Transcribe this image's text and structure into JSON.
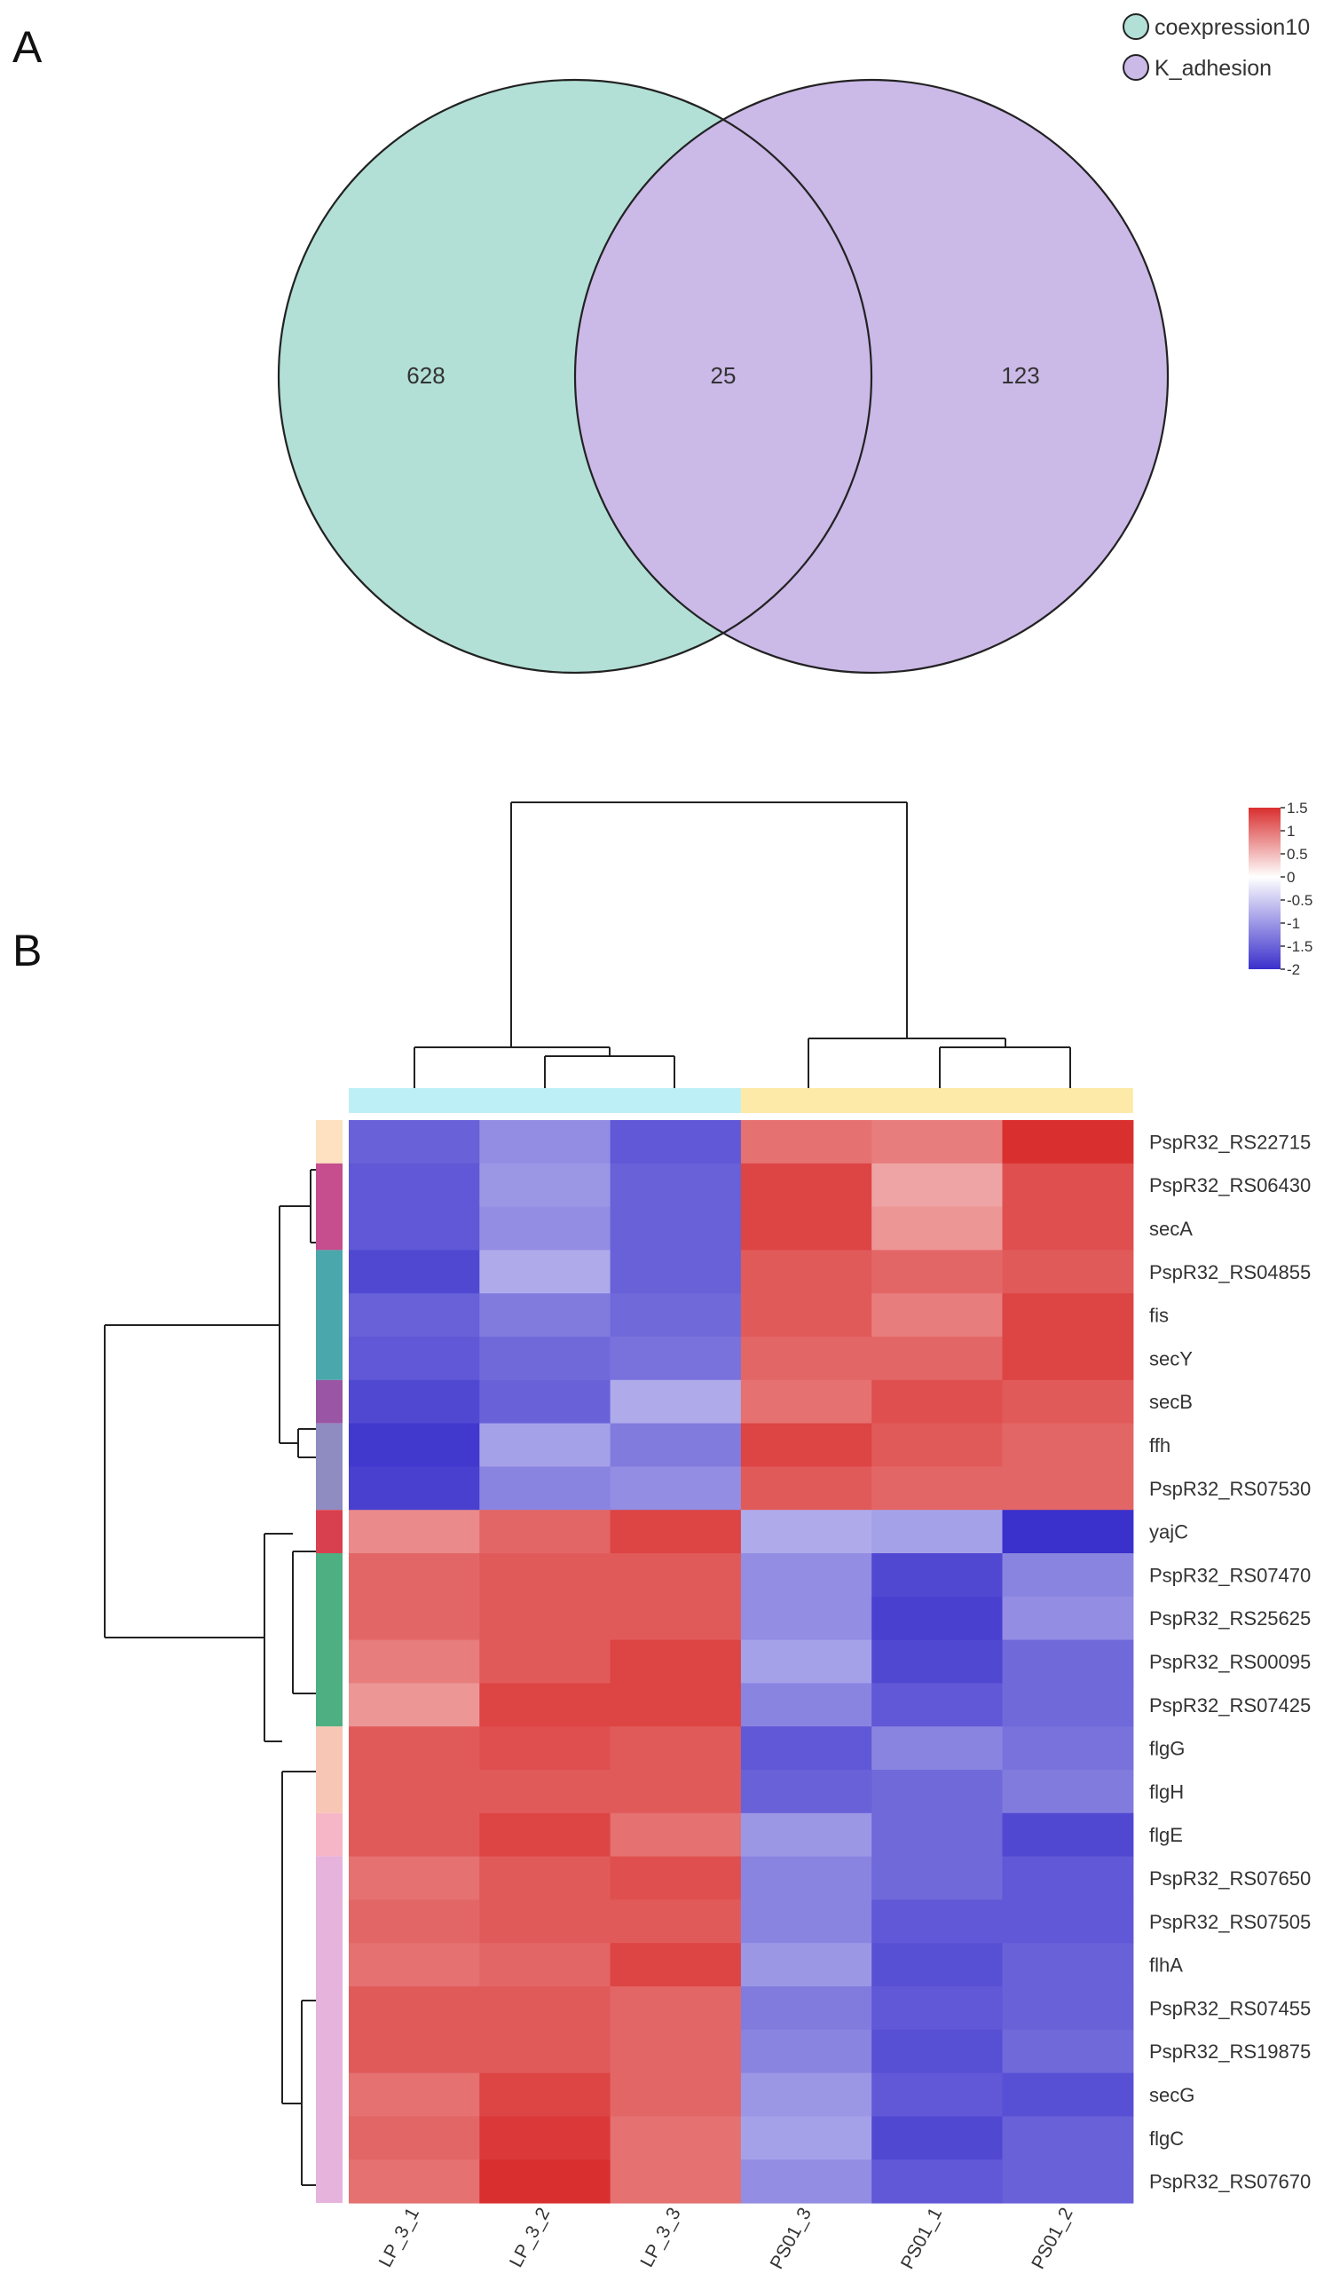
{
  "panel_a": {
    "letter": "A",
    "chart_data": {
      "type": "venn",
      "sets": [
        {
          "name": "coexpression10",
          "color": "#b2e0d6",
          "only": 628
        },
        {
          "name": "K_adhesion",
          "color": "#cbb9e8",
          "only": 123
        }
      ],
      "intersection": 25,
      "labels": [
        "628",
        "25",
        "123"
      ]
    }
  },
  "panel_b": {
    "letter": "B",
    "chart_data": {
      "type": "heatmap",
      "colorbar": {
        "min": -2,
        "max": 1.5,
        "ticks": [
          "1.5",
          "1",
          "0.5",
          "0",
          "-0.5",
          "-1",
          "-1.5",
          "-2"
        ],
        "low_color": "#3a30cc",
        "mid_color": "#ffffff",
        "high_color": "#d92f2f"
      },
      "columns": [
        "LP_3_1",
        "LP_3_2",
        "LP_3_3",
        "PS01_3",
        "PS01_1",
        "PS01_2"
      ],
      "column_groups": [
        {
          "columns": [
            "LP_3_1",
            "LP_3_2",
            "LP_3_3"
          ],
          "color": "#bdeff7"
        },
        {
          "columns": [
            "PS01_3",
            "PS01_1",
            "PS01_2"
          ],
          "color": "#fde9a8"
        }
      ],
      "rows": [
        "PspR32_RS22715",
        "PspR32_RS06430",
        "secA",
        "PspR32_RS04855",
        "fis",
        "secY",
        "secB",
        "ffh",
        "PspR32_RS07530",
        "yajC",
        "PspR32_RS07470",
        "PspR32_RS25625",
        "PspR32_RS00095",
        "PspR32_RS07425",
        "flgG",
        "flgH",
        "flgE",
        "PspR32_RS07650",
        "PspR32_RS07505",
        "flhA",
        "PspR32_RS07455",
        "PspR32_RS19875",
        "secG",
        "flgC",
        "PspR32_RS07670"
      ],
      "row_groups": [
        {
          "rows": 1,
          "color": "#fde1c0"
        },
        {
          "rows": 2,
          "color": "#c64d8e"
        },
        {
          "rows": 3,
          "color": "#4aa8ac"
        },
        {
          "rows": 1,
          "color": "#9a55a4"
        },
        {
          "rows": 2,
          "color": "#8f8cc2"
        },
        {
          "rows": 1,
          "color": "#d8404f"
        },
        {
          "rows": 4,
          "color": "#4daf82"
        },
        {
          "rows": 2,
          "color": "#f8c6b4"
        },
        {
          "rows": 1,
          "color": "#f7b6c8"
        },
        {
          "rows": 8,
          "color": "#e5b3dc"
        }
      ],
      "values": [
        [
          -1.4,
          -0.9,
          -1.5,
          0.9,
          0.8,
          1.5
        ],
        [
          -1.5,
          -0.8,
          -1.4,
          1.3,
          0.5,
          1.2
        ],
        [
          -1.5,
          -0.9,
          -1.4,
          1.3,
          0.6,
          1.2
        ],
        [
          -1.7,
          -0.6,
          -1.4,
          1.1,
          1.0,
          1.1
        ],
        [
          -1.4,
          -1.1,
          -1.3,
          1.1,
          0.8,
          1.3
        ],
        [
          -1.5,
          -1.3,
          -1.2,
          1.0,
          1.0,
          1.3
        ],
        [
          -1.7,
          -1.4,
          -0.6,
          0.9,
          1.2,
          1.1
        ],
        [
          -1.9,
          -0.7,
          -1.1,
          1.3,
          1.1,
          1.0
        ],
        [
          -1.8,
          -1.0,
          -0.9,
          1.1,
          1.0,
          1.0
        ],
        [
          0.7,
          1.0,
          1.3,
          -0.6,
          -0.7,
          -2.0
        ],
        [
          1.0,
          1.1,
          1.1,
          -0.9,
          -1.7,
          -1.0
        ],
        [
          1.0,
          1.1,
          1.1,
          -0.9,
          -1.8,
          -0.9
        ],
        [
          0.8,
          1.1,
          1.3,
          -0.7,
          -1.7,
          -1.3
        ],
        [
          0.6,
          1.3,
          1.3,
          -1.0,
          -1.5,
          -1.3
        ],
        [
          1.1,
          1.2,
          1.1,
          -1.5,
          -1.0,
          -1.2
        ],
        [
          1.1,
          1.1,
          1.1,
          -1.4,
          -1.3,
          -1.1
        ],
        [
          1.1,
          1.3,
          0.9,
          -0.8,
          -1.3,
          -1.7
        ],
        [
          0.9,
          1.1,
          1.2,
          -1.0,
          -1.3,
          -1.5
        ],
        [
          1.0,
          1.1,
          1.1,
          -1.0,
          -1.5,
          -1.5
        ],
        [
          0.9,
          1.0,
          1.3,
          -0.8,
          -1.6,
          -1.4
        ],
        [
          1.1,
          1.1,
          1.0,
          -1.1,
          -1.5,
          -1.4
        ],
        [
          1.1,
          1.1,
          1.0,
          -1.0,
          -1.6,
          -1.3
        ],
        [
          0.9,
          1.3,
          1.0,
          -0.8,
          -1.5,
          -1.6
        ],
        [
          1.0,
          1.4,
          0.9,
          -0.7,
          -1.7,
          -1.4
        ],
        [
          0.9,
          1.5,
          0.9,
          -0.9,
          -1.5,
          -1.4
        ]
      ]
    }
  }
}
